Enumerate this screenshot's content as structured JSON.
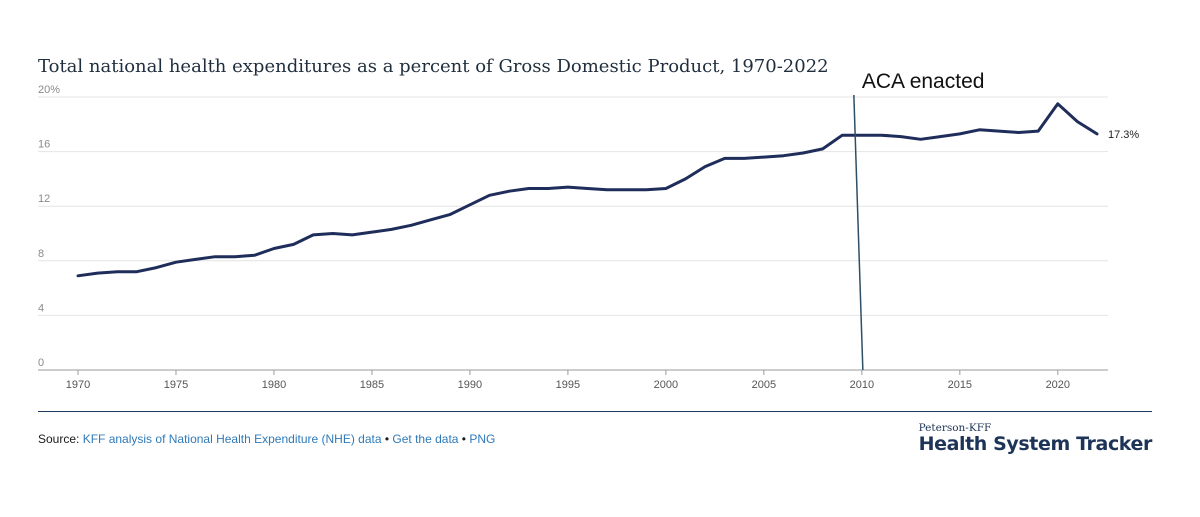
{
  "chart_data": {
    "type": "line",
    "title": "Total national health expenditures as a percent of Gross Domestic Product, 1970-2022",
    "xlabel": "",
    "ylabel": "",
    "xlim": [
      1970,
      2022
    ],
    "ylim": [
      0,
      20
    ],
    "x_ticks": [
      1970,
      1975,
      1980,
      1985,
      1990,
      1995,
      2000,
      2005,
      2010,
      2015,
      2020
    ],
    "y_ticks": [
      0,
      4,
      8,
      12,
      16,
      20
    ],
    "y_tick_labels": [
      "0",
      "4",
      "8",
      "12",
      "16",
      "20%"
    ],
    "grid": true,
    "series": [
      {
        "name": "Total national health expenditures as a percent of GDP",
        "color": "#1f2d5a",
        "x": [
          1970,
          1971,
          1972,
          1973,
          1974,
          1975,
          1976,
          1977,
          1978,
          1979,
          1980,
          1981,
          1982,
          1983,
          1984,
          1985,
          1986,
          1987,
          1988,
          1989,
          1990,
          1991,
          1992,
          1993,
          1994,
          1995,
          1996,
          1997,
          1998,
          1999,
          2000,
          2001,
          2002,
          2003,
          2004,
          2005,
          2006,
          2007,
          2008,
          2009,
          2010,
          2011,
          2012,
          2013,
          2014,
          2015,
          2016,
          2017,
          2018,
          2019,
          2020,
          2021,
          2022
        ],
        "values": [
          6.9,
          7.1,
          7.2,
          7.2,
          7.5,
          7.9,
          8.1,
          8.3,
          8.3,
          8.4,
          8.9,
          9.2,
          9.9,
          10.0,
          9.9,
          10.1,
          10.3,
          10.6,
          11.0,
          11.4,
          12.1,
          12.8,
          13.1,
          13.3,
          13.3,
          13.4,
          13.3,
          13.2,
          13.2,
          13.2,
          13.3,
          14.0,
          14.9,
          15.5,
          15.5,
          15.6,
          15.7,
          15.9,
          16.2,
          17.2,
          17.2,
          17.2,
          17.1,
          16.9,
          17.1,
          17.3,
          17.6,
          17.5,
          17.4,
          17.5,
          19.5,
          18.2,
          17.3
        ]
      }
    ],
    "end_label": "17.3%",
    "annotation": {
      "label": "ACA enacted",
      "x": 2010
    }
  },
  "footer": {
    "source_label": "Source:",
    "source_link": "KFF analysis of National Health Expenditure (NHE) data",
    "bullet": "•",
    "get_data": "Get the data",
    "png": "PNG"
  },
  "brand": {
    "small": "Peterson-KFF",
    "big": "Health System Tracker"
  }
}
